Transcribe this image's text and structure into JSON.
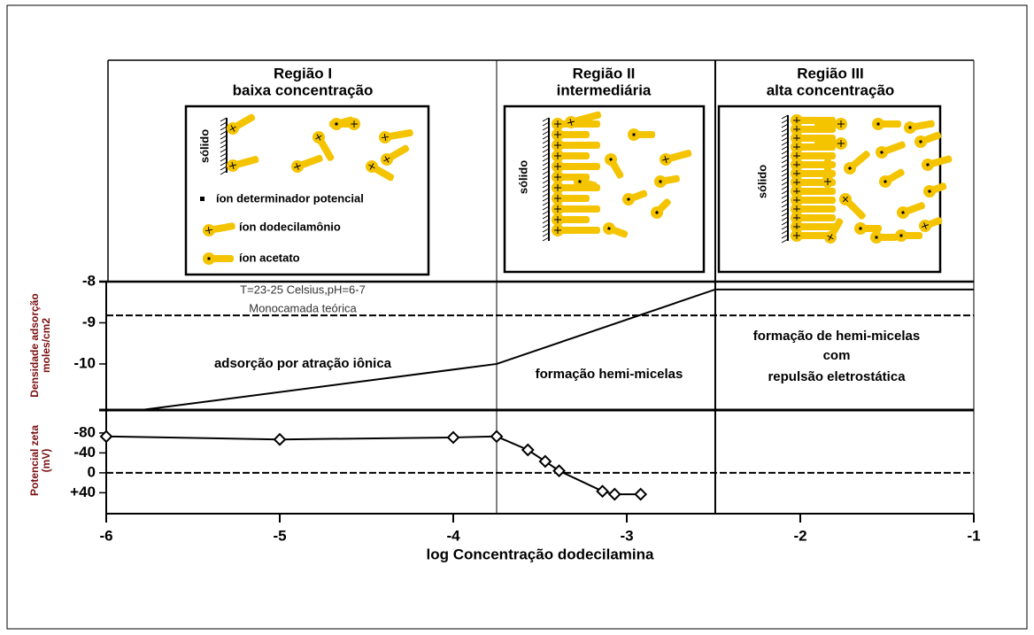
{
  "chart_data": [
    {
      "type": "line",
      "ylabel": [
        "Densidade adsorção",
        "moles/cm2"
      ],
      "xlim": [
        -6,
        -1
      ],
      "ylim": [
        -11.12,
        -8
      ],
      "yticks": [
        -8,
        -9,
        -10
      ],
      "x": [
        -5.8,
        -3.75,
        -2.49,
        -1
      ],
      "values": [
        -11.12,
        -10,
        -8.19,
        -8.19
      ],
      "color": "#000000",
      "monolayer": -8.82,
      "region_boundaries": [
        -3.75,
        -2.49
      ],
      "annotations": [
        "T=23-25 Celsius,pH=6-7",
        "Monocamada teórica",
        "adsorção por atração iônica",
        "formação  hemi-micelas",
        "formação de hemi-micelas",
        "com",
        "repulsão eletrostática"
      ]
    },
    {
      "type": "line",
      "marker": "diamond",
      "ylabel": [
        "Potencial zeta",
        "(mV)"
      ],
      "xlabel": "log Concentração dodecilamina",
      "xlim": [
        -6,
        -1
      ],
      "xticks": [
        -6,
        -5,
        -4,
        -3,
        -2,
        -1
      ],
      "ylim": [
        82,
        -126
      ],
      "yticks": [
        -80,
        -40,
        0,
        {
          "value": 40,
          "label": "+40"
        }
      ],
      "x": [
        -6,
        -5,
        -4,
        -3.75,
        -3.57,
        -3.47,
        -3.39,
        -3.14,
        -3.07,
        -2.92
      ],
      "values": [
        -73,
        -67,
        -71,
        -73,
        -46,
        -23,
        -4,
        37,
        43,
        43
      ],
      "color": "#000000",
      "reference_line": 0
    }
  ],
  "regions": [
    {
      "title": "Região I",
      "subtitle": "baixa concentração"
    },
    {
      "title": "Região II",
      "subtitle": "intermediária"
    },
    {
      "title": "Região III",
      "subtitle": "alta concentração"
    }
  ],
  "legend": [
    "íon determinador  potencial",
    "íon dodecilamônio",
    "íon acetato"
  ],
  "surface_label": "sólido"
}
